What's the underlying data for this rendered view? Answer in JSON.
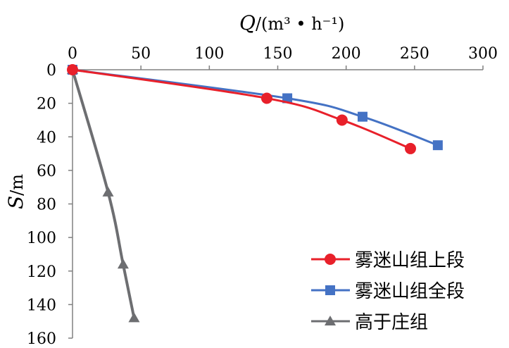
{
  "chart_data": {
    "type": "line",
    "xlabel_var": "Q",
    "xlabel_unit": "/(m³ • h⁻¹)",
    "ylabel_var": "S",
    "ylabel_unit": "/m",
    "x_axis_position": "top",
    "y_axis_inverted": true,
    "xlim": [
      0,
      300
    ],
    "ylim": [
      0,
      160
    ],
    "x_ticks": [
      "0",
      "50",
      "100",
      "150",
      "200",
      "250",
      "300"
    ],
    "y_ticks": [
      "0",
      "20",
      "40",
      "60",
      "80",
      "100",
      "120",
      "140",
      "160"
    ],
    "grid": false,
    "legend_position": "bottom-right",
    "series": [
      {
        "name": "雾迷山组上段",
        "color": "#e8202a",
        "marker": "circle",
        "x": [
          0,
          142,
          197,
          247
        ],
        "y": [
          0,
          17,
          30,
          47
        ]
      },
      {
        "name": "雾迷山组全段",
        "color": "#4472c4",
        "marker": "square",
        "x": [
          0,
          157,
          212,
          267
        ],
        "y": [
          0,
          17,
          28,
          45
        ]
      },
      {
        "name": "高于庄组",
        "color": "#6d6e71",
        "marker": "triangle",
        "x": [
          0,
          26,
          37,
          45
        ],
        "y": [
          0,
          73,
          116,
          148
        ]
      }
    ]
  }
}
